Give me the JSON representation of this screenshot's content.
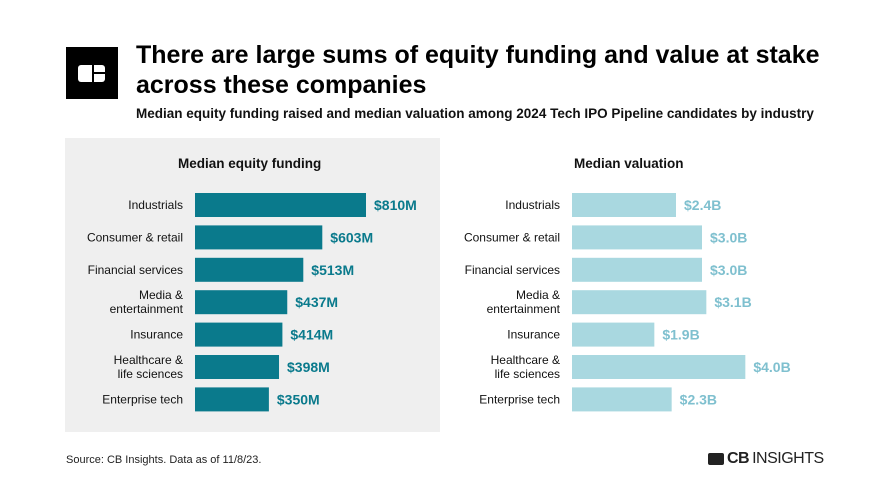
{
  "header": {
    "title": "There are large sums of equity funding and value at stake across these companies",
    "subtitle": "Median equity funding raised and median valuation among 2024 Tech IPO Pipeline candidates by industry"
  },
  "footer": {
    "source": "Source: CB Insights. Data as of 11/8/23.",
    "brand_bold": "CB",
    "brand_light": "INSIGHTS"
  },
  "chart_data": [
    {
      "type": "bar",
      "orientation": "horizontal",
      "title": "Median equity funding",
      "color": "#0a7a8c",
      "categories": [
        "Industrials",
        "Consumer & retail",
        "Financial services",
        "Media & entertainment",
        "Insurance",
        "Healthcare & life sciences",
        "Enterprise tech"
      ],
      "category_lines": [
        [
          "Industrials"
        ],
        [
          "Consumer & retail"
        ],
        [
          "Financial services"
        ],
        [
          "Media &",
          "entertainment"
        ],
        [
          "Insurance"
        ],
        [
          "Healthcare &",
          "life sciences"
        ],
        [
          "Enterprise tech"
        ]
      ],
      "values": [
        810,
        603,
        513,
        437,
        414,
        398,
        350
      ],
      "labels": [
        "$810M",
        "$603M",
        "$513M",
        "$437M",
        "$414M",
        "$398M",
        "$350M"
      ]
    },
    {
      "type": "bar",
      "orientation": "horizontal",
      "title": "Median valuation",
      "color": "#a9d8e0",
      "label_color": "#7fc0cf",
      "categories": [
        "Industrials",
        "Consumer & retail",
        "Financial services",
        "Media & entertainment",
        "Insurance",
        "Healthcare & life sciences",
        "Enterprise tech"
      ],
      "category_lines": [
        [
          "Industrials"
        ],
        [
          "Consumer & retail"
        ],
        [
          "Financial services"
        ],
        [
          "Media &",
          "entertainment"
        ],
        [
          "Insurance"
        ],
        [
          "Healthcare &",
          "life sciences"
        ],
        [
          "Enterprise tech"
        ]
      ],
      "values": [
        2.4,
        3.0,
        3.0,
        3.1,
        1.9,
        4.0,
        2.3
      ],
      "labels": [
        "$2.4B",
        "$3.0B",
        "$3.0B",
        "$3.1B",
        "$1.9B",
        "$4.0B",
        "$2.3B"
      ]
    }
  ]
}
